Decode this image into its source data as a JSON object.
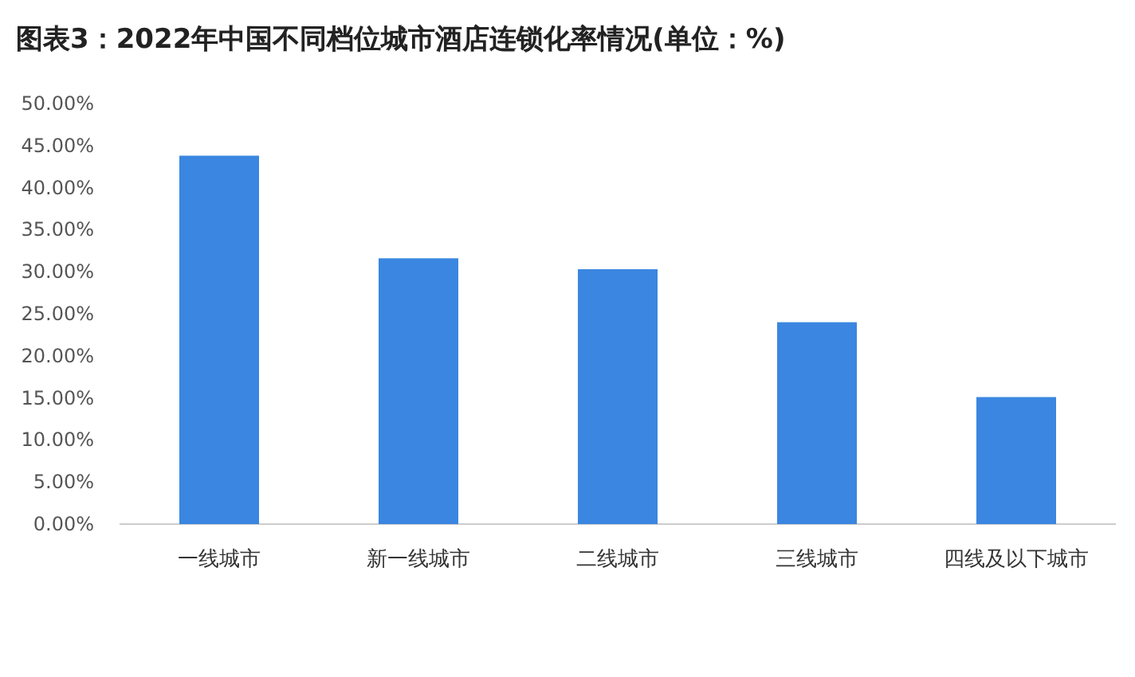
{
  "chart_data": {
    "type": "bar",
    "title": "图表3：2022年中国不同档位城市酒店连锁化率情况(单位：%)",
    "categories": [
      "一线城市",
      "新一线城市",
      "二线城市",
      "三线城市",
      "四线及以下城市"
    ],
    "values": [
      43.8,
      31.6,
      30.3,
      24.0,
      15.1
    ],
    "color": "#3a86e0",
    "ylim": [
      0,
      50
    ],
    "yticks": [
      {
        "value": 0,
        "label": "0.00%"
      },
      {
        "value": 5,
        "label": "5.00%"
      },
      {
        "value": 10,
        "label": "10.00%"
      },
      {
        "value": 15,
        "label": "15.00%"
      },
      {
        "value": 20,
        "label": "20.00%"
      },
      {
        "value": 25,
        "label": "25.00%"
      },
      {
        "value": 30,
        "label": "30.00%"
      },
      {
        "value": 35,
        "label": "35.00%"
      },
      {
        "value": 40,
        "label": "40.00%"
      },
      {
        "value": 45,
        "label": "45.00%"
      },
      {
        "value": 50,
        "label": "50.00%"
      }
    ],
    "grid": false
  }
}
